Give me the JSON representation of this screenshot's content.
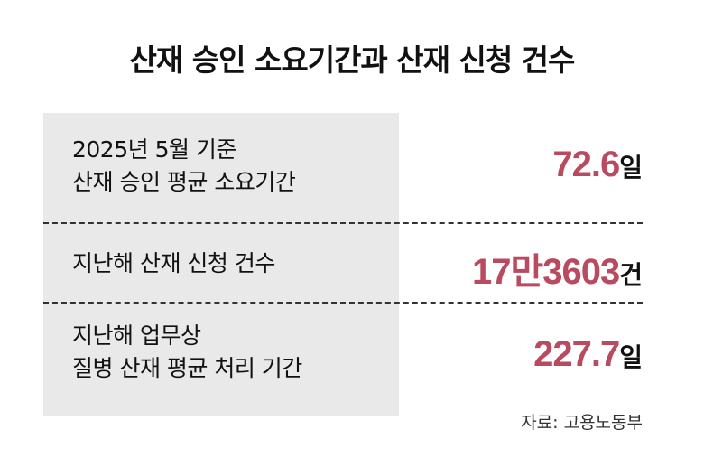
{
  "title": "산재 승인 소요기간과 산재 신청 건수",
  "rows": [
    {
      "label_lines": [
        "2025년 5월 기준",
        "산재 승인 평균 소요기간"
      ],
      "value": "72.6",
      "unit": "일"
    },
    {
      "label_lines": [
        "지난해 산재 신청 건수"
      ],
      "value": "17만3603",
      "unit": "건"
    },
    {
      "label_lines": [
        "지난해 업무상",
        "질병 산재 평균 처리 기간"
      ],
      "value": "227.7",
      "unit": "일"
    }
  ],
  "source": "자료: 고용노동부",
  "colors": {
    "accent": "#b94a60",
    "panel": "#e9e9e9"
  }
}
